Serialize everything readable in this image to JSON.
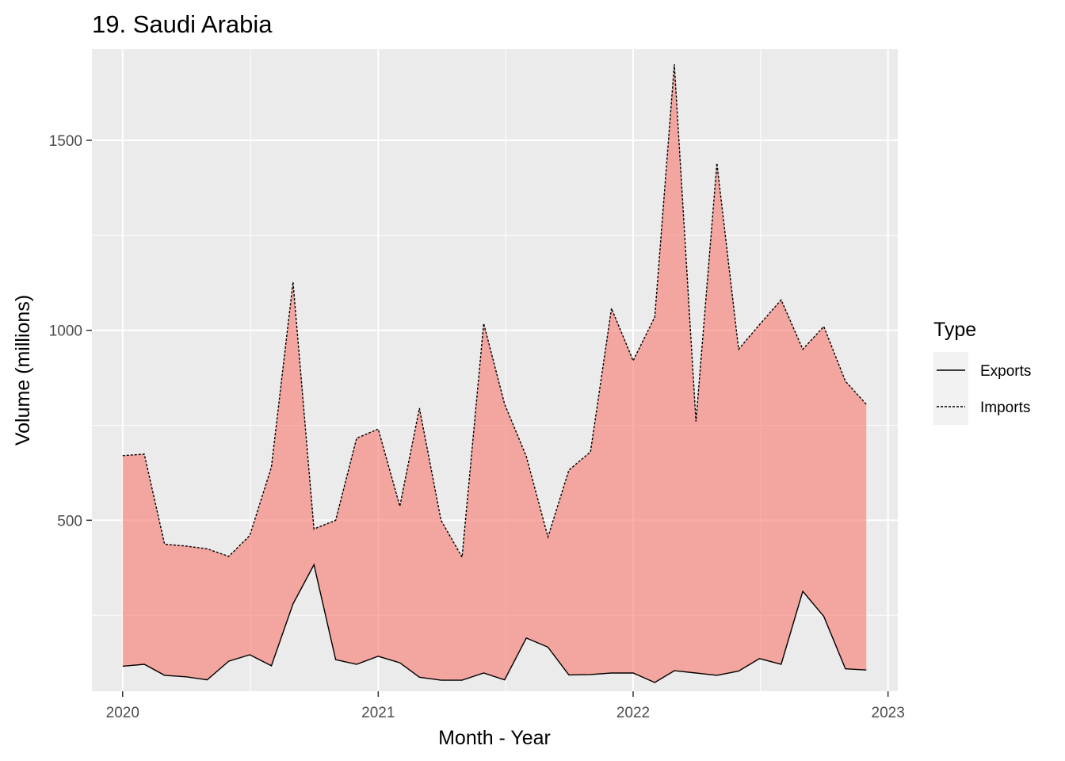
{
  "chart_data": {
    "type": "area",
    "title": "19. Saudi Arabia",
    "xlabel": "Month - Year",
    "ylabel": "Volume (millions)",
    "x_ticks": [
      "2020",
      "2021",
      "2022",
      "2023"
    ],
    "y_ticks": [
      500,
      1000,
      1500
    ],
    "xlim": [
      "2019-11-18",
      "2023-01-15"
    ],
    "ylim": [
      50,
      1740
    ],
    "grid": true,
    "legend": {
      "title": "Type",
      "placement": "right"
    },
    "x": [
      "2020-01",
      "2020-02",
      "2020-03",
      "2020-04",
      "2020-05",
      "2020-06",
      "2020-07",
      "2020-08",
      "2020-09",
      "2020-10",
      "2020-11",
      "2020-12",
      "2021-01",
      "2021-02",
      "2021-03",
      "2021-04",
      "2021-05",
      "2021-06",
      "2021-07",
      "2021-08",
      "2021-09",
      "2021-10",
      "2021-11",
      "2021-12",
      "2022-01",
      "2022-02",
      "2022-03",
      "2022-04",
      "2022-05",
      "2022-06",
      "2022-07",
      "2022-08",
      "2022-09",
      "2022-10",
      "2022-11",
      "2022-12"
    ],
    "series": [
      {
        "name": "Exports",
        "linetype": "solid",
        "values": [
          116,
          121,
          92,
          88,
          80,
          129,
          146,
          117,
          280,
          383,
          133,
          121,
          142,
          125,
          87,
          79,
          79,
          98,
          80,
          190,
          166,
          93,
          94,
          98,
          98,
          73,
          104,
          98,
          92,
          103,
          136,
          121,
          313,
          247,
          109,
          106
        ]
      },
      {
        "name": "Imports",
        "linetype": "dashed",
        "values": [
          670,
          674,
          437,
          432,
          425,
          405,
          460,
          640,
          1127,
          477,
          500,
          716,
          740,
          537,
          795,
          500,
          403,
          1018,
          806,
          668,
          456,
          632,
          680,
          1058,
          920,
          1035,
          1700,
          760,
          1440,
          950,
          1015,
          1080,
          950,
          1010,
          866,
          805
        ]
      }
    ],
    "fill_color": "#F8766D",
    "fill_opacity": 0.6
  }
}
